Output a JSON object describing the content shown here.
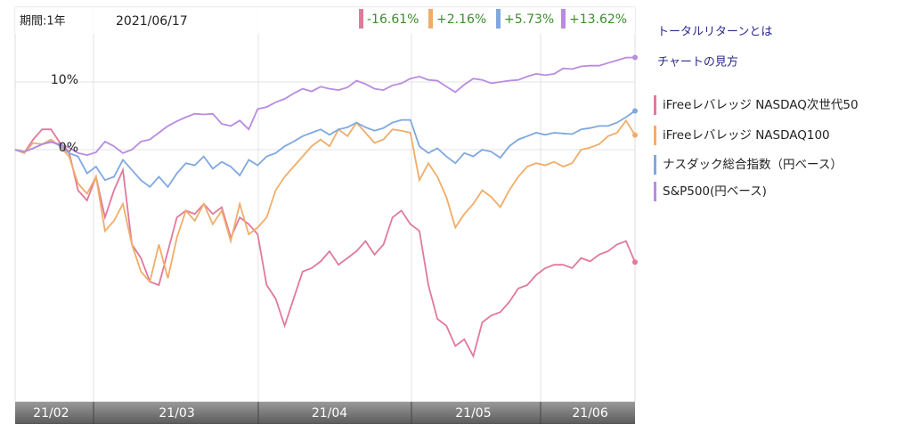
{
  "chart_data": {
    "type": "line",
    "period_label": "期間:1年",
    "date_label": "2021/06/17",
    "links": [
      "トータルリターンとは",
      "チャートの見方"
    ],
    "categories": [
      null,
      null,
      null,
      null,
      "21/02",
      null,
      null,
      null,
      null,
      null,
      null,
      null,
      null,
      null,
      null,
      null,
      null,
      null,
      "21/03",
      null,
      null,
      null,
      null,
      null,
      null,
      null,
      null,
      null,
      null,
      null,
      null,
      null,
      null,
      null,
      null,
      "21/04",
      null,
      null,
      null,
      null,
      null,
      null,
      null,
      null,
      null,
      null,
      null,
      null,
      null,
      null,
      null,
      "21/05",
      null,
      null,
      null,
      null,
      null,
      null,
      null,
      null,
      null,
      null,
      null,
      null,
      "21/06",
      null,
      null,
      null,
      null,
      null
    ],
    "ylim": [
      -37.1,
      21.05
    ],
    "yticks": [
      {
        "value": 0,
        "label": "0%"
      },
      {
        "value": 10,
        "label": "10%"
      }
    ],
    "grid": true,
    "series": [
      {
        "name": "iFreeレバレッジ NASDAQ次世代50",
        "color": "#e07a9a",
        "values": [
          0,
          -0.5,
          1.5,
          3,
          3,
          1,
          -0.3,
          -6,
          -7.5,
          -4,
          -10,
          -6,
          -3,
          -14,
          -16,
          -19.5,
          -20,
          -15,
          -10,
          -9,
          -9.5,
          -8,
          -9.5,
          -8.5,
          -13,
          -10,
          -11,
          -12.5,
          -20,
          -22,
          -26,
          -22,
          -18,
          -17.5,
          -16.5,
          -15,
          -17,
          -16,
          -15,
          -13.5,
          -15.5,
          -14,
          -10,
          -9,
          -11,
          -12,
          -20,
          -25,
          -26,
          -29,
          -28,
          -30.5,
          -25.5,
          -24.5,
          -24,
          -22.5,
          -20.5,
          -20,
          -18.5,
          -17.5,
          -17,
          -17,
          -17.5,
          -16,
          -16.5,
          -15.5,
          -15,
          -14,
          -13.5,
          -16.61
        ],
        "value_labels": [
          null,
          null,
          null,
          null,
          null,
          null,
          null,
          null,
          null,
          null,
          null,
          null,
          null,
          null,
          null,
          null,
          null,
          null,
          null,
          null,
          null,
          null,
          null,
          null,
          null,
          null,
          null,
          null,
          null,
          null,
          null,
          null,
          null,
          null,
          null,
          null,
          null,
          null,
          null,
          null,
          null,
          null,
          null,
          null,
          null,
          null,
          null,
          null,
          null,
          null,
          null,
          null,
          null,
          null,
          null,
          null,
          null,
          null,
          null,
          null,
          null,
          null,
          null,
          null,
          null,
          null,
          null,
          null,
          null,
          "-16.61%"
        ]
      },
      {
        "name": "iFreeレバレッジ NASDAQ100",
        "color": "#f0ad6a",
        "values": [
          0,
          -0.5,
          1,
          0.8,
          1.5,
          0.5,
          -1,
          -5,
          -6.5,
          -4,
          -12,
          -10.5,
          -8,
          -14,
          -18,
          -19.5,
          -14,
          -19,
          -13,
          -9,
          -10.5,
          -8,
          -11,
          -9,
          -13.5,
          -8,
          -12.5,
          -11.5,
          -10,
          -6,
          -4,
          -2.5,
          -1,
          0.5,
          1.5,
          0.5,
          3,
          2,
          4,
          2.5,
          1,
          1.5,
          3,
          2.8,
          2.5,
          -4.5,
          -2,
          -4,
          -7,
          -11.5,
          -9.5,
          -8,
          -6,
          -7,
          -8.5,
          -6,
          -4,
          -2.5,
          -2,
          -2.3,
          -1.8,
          -2.5,
          -2,
          0,
          0.3,
          0.8,
          2,
          2.5,
          4.3,
          2.16
        ],
        "value_labels": [
          null,
          null,
          null,
          null,
          null,
          null,
          null,
          null,
          null,
          null,
          null,
          null,
          null,
          null,
          null,
          null,
          null,
          null,
          null,
          null,
          null,
          null,
          null,
          null,
          null,
          null,
          null,
          null,
          null,
          null,
          null,
          null,
          null,
          null,
          null,
          null,
          null,
          null,
          null,
          null,
          null,
          null,
          null,
          null,
          null,
          null,
          null,
          null,
          null,
          null,
          null,
          null,
          null,
          null,
          null,
          null,
          null,
          null,
          null,
          null,
          null,
          null,
          null,
          null,
          null,
          null,
          null,
          null,
          null,
          "+2.16%"
        ]
      },
      {
        "name": "ナスダック総合指数（円ベース）",
        "color": "#7fa8e0",
        "values": [
          0,
          -0.3,
          0.2,
          0.8,
          1.2,
          0.6,
          -0.5,
          -1,
          -3.5,
          -2.5,
          -4.5,
          -4,
          -1.5,
          -3,
          -4.5,
          -5.5,
          -4,
          -5.5,
          -3.5,
          -2,
          -2.3,
          -1,
          -2.8,
          -1.8,
          -2.5,
          -3.8,
          -1.5,
          -2.3,
          -1,
          -0.5,
          0.5,
          1.2,
          2,
          2.5,
          3,
          2.2,
          3,
          3.3,
          4,
          3.3,
          2.8,
          3.2,
          4,
          4.4,
          4.4,
          0.5,
          -0.5,
          0.2,
          -1,
          -2,
          -0.5,
          -1,
          0,
          -0.3,
          -1.2,
          0.5,
          1.5,
          2,
          2.5,
          2.2,
          2.5,
          2.4,
          2.3,
          3,
          3.2,
          3.5,
          3.5,
          4,
          4.8,
          5.73
        ],
        "value_labels": [
          null,
          null,
          null,
          null,
          null,
          null,
          null,
          null,
          null,
          null,
          null,
          null,
          null,
          null,
          null,
          null,
          null,
          null,
          null,
          null,
          null,
          null,
          null,
          null,
          null,
          null,
          null,
          null,
          null,
          null,
          null,
          null,
          null,
          null,
          null,
          null,
          null,
          null,
          null,
          null,
          null,
          null,
          null,
          null,
          null,
          null,
          null,
          null,
          null,
          null,
          null,
          null,
          null,
          null,
          null,
          null,
          null,
          null,
          null,
          null,
          null,
          null,
          null,
          null,
          null,
          null,
          null,
          null,
          null,
          "+5.73%"
        ]
      },
      {
        "name": "S&P500(円ベース)",
        "color": "#b98be0",
        "values": [
          0,
          -0.3,
          0.2,
          0.8,
          1.1,
          0.8,
          0.3,
          -0.5,
          -0.8,
          -0.4,
          1.2,
          0.5,
          -0.5,
          0,
          1.2,
          1.5,
          2.5,
          3.5,
          4.2,
          4.8,
          5.3,
          5.2,
          5.3,
          3.8,
          3.5,
          4.3,
          3,
          6,
          6.3,
          7,
          7.5,
          8.3,
          9,
          8.6,
          9.3,
          9,
          8.8,
          9.2,
          10.2,
          9.7,
          9,
          8.8,
          9.5,
          9.8,
          10.5,
          10.8,
          10.3,
          10.2,
          9.3,
          8.5,
          9.6,
          10.5,
          10.3,
          9.8,
          10,
          10.2,
          10.3,
          10.8,
          11.2,
          11,
          11.2,
          12,
          11.9,
          12.3,
          12.4,
          12.4,
          12.8,
          13.2,
          13.6,
          13.62
        ],
        "value_labels": [
          null,
          null,
          null,
          null,
          null,
          null,
          null,
          null,
          null,
          null,
          null,
          null,
          null,
          null,
          null,
          null,
          null,
          null,
          null,
          null,
          null,
          null,
          null,
          null,
          null,
          null,
          null,
          null,
          null,
          null,
          null,
          null,
          null,
          null,
          null,
          null,
          null,
          null,
          null,
          null,
          null,
          null,
          null,
          null,
          null,
          null,
          null,
          null,
          null,
          null,
          null,
          null,
          null,
          null,
          null,
          null,
          null,
          null,
          null,
          null,
          null,
          null,
          null,
          null,
          null,
          null,
          null,
          null,
          null,
          "+13.62%"
        ]
      }
    ]
  }
}
